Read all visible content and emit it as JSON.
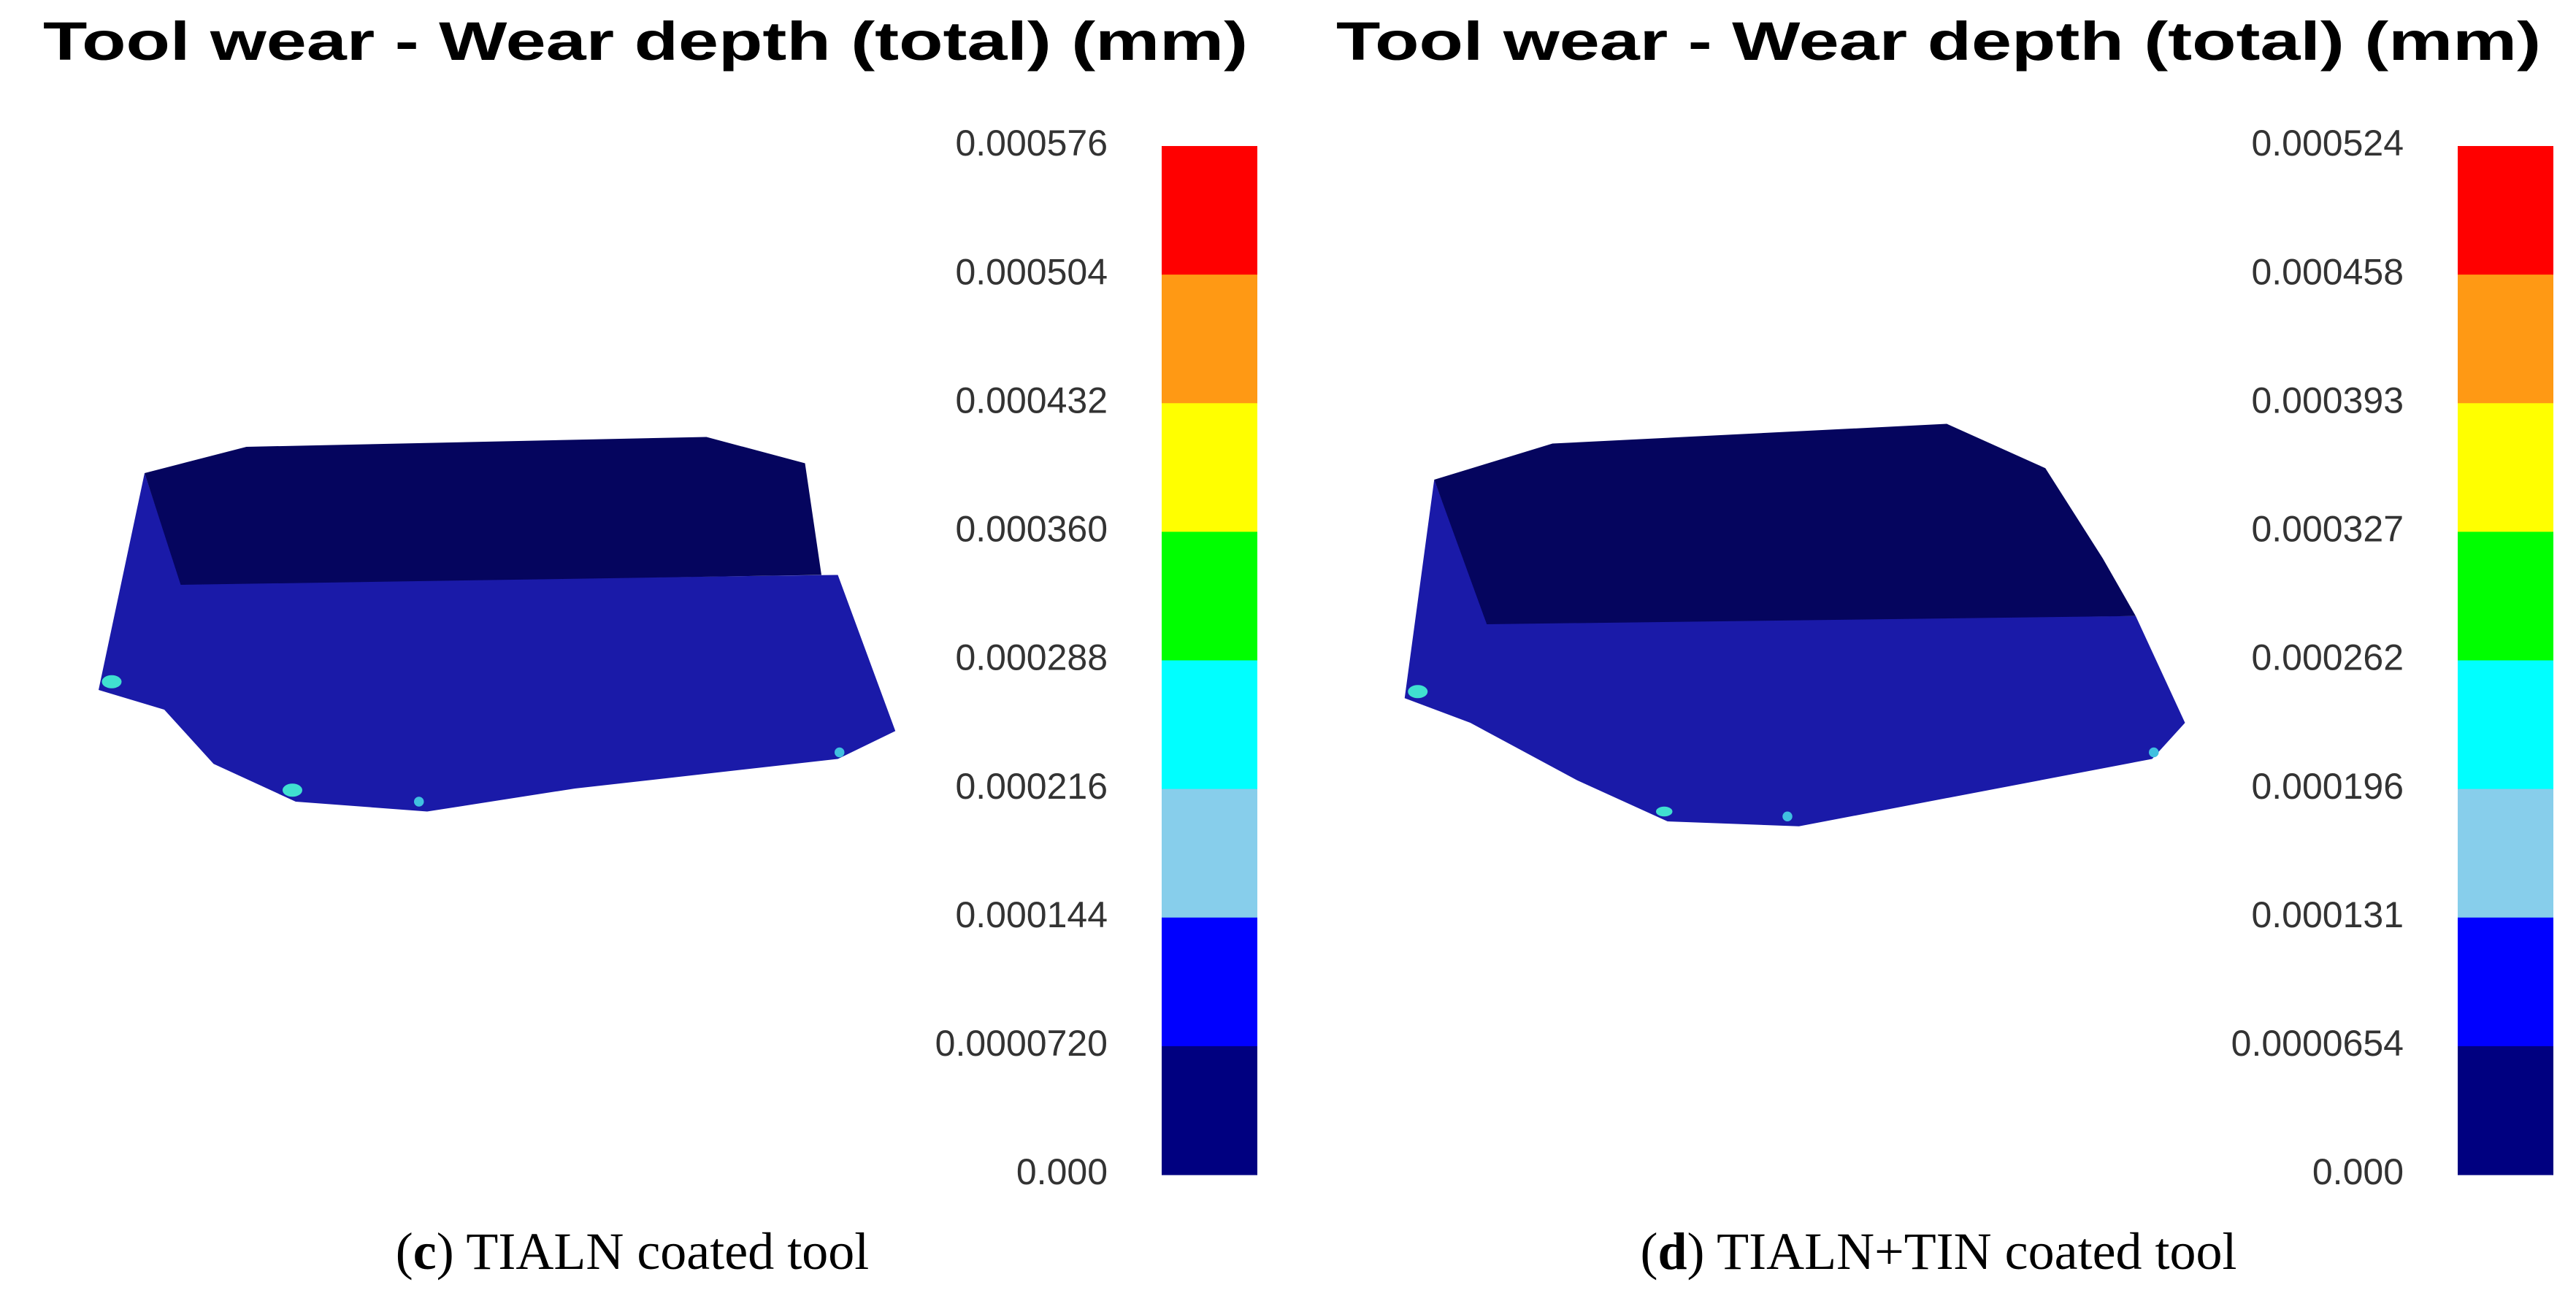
{
  "panels": [
    {
      "title": "Tool wear - Wear depth (total) (mm)",
      "legend": {
        "labels": [
          "0.000576",
          "0.000504",
          "0.000432",
          "0.000360",
          "0.000288",
          "0.000216",
          "0.000144",
          "0.0000720",
          "0.000"
        ],
        "colors": [
          "#ff0000",
          "#ff9914",
          "#ffff00",
          "#00ff00",
          "#00ffff",
          "#87ceeb",
          "#0000ff",
          "#000080"
        ]
      },
      "caption": [
        "(",
        "c",
        ") TIALN coated tool"
      ]
    },
    {
      "title": "Tool wear - Wear depth (total) (mm)",
      "legend": {
        "labels": [
          "0.000524",
          "0.000458",
          "0.000393",
          "0.000327",
          "0.000262",
          "0.000196",
          "0.000131",
          "0.0000654",
          "0.000"
        ],
        "colors": [
          "#ff0000",
          "#ff9914",
          "#ffff00",
          "#00ff00",
          "#00ffff",
          "#87ceeb",
          "#0000ff",
          "#000080"
        ]
      },
      "caption": [
        "(",
        "d",
        ") TIALN+TIN coated tool"
      ]
    }
  ]
}
